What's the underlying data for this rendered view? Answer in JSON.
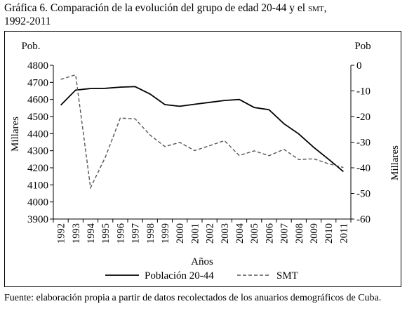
{
  "title_prefix": "Gráfica 6. Comparación de la evolución del grupo de edad 20-44 y el ",
  "title_sc": "SMT",
  "title_suffix": ",",
  "title_line2": "1992-2011",
  "source": "Fuente: elaboración propia a partir de datos recolectados de los anuarios demográficos de Cuba.",
  "chart_data": {
    "type": "line",
    "x": [
      "1992",
      "1993",
      "1994",
      "1995",
      "1996",
      "1997",
      "1998",
      "1999",
      "2000",
      "2001",
      "2002",
      "2003",
      "2004",
      "2005",
      "2006",
      "2007",
      "2008",
      "2009",
      "2010",
      "2011"
    ],
    "xlabel": "Años",
    "y_left": {
      "header": "Pob.",
      "label": "Millares",
      "ylim": [
        3900,
        4800
      ],
      "ticks": [
        3900,
        4000,
        4100,
        4200,
        4300,
        4400,
        4500,
        4600,
        4700,
        4800
      ]
    },
    "y_right": {
      "header": "Pob",
      "label": "Millares",
      "ylim": [
        -60,
        0
      ],
      "ticks": [
        0,
        -10,
        -20,
        -30,
        -40,
        -50,
        -60
      ]
    },
    "series": [
      {
        "name": "Población 20-44",
        "axis": "left",
        "style": "solid",
        "color": "#000000",
        "values": [
          4567,
          4655,
          4664,
          4665,
          4672,
          4675,
          4632,
          4570,
          4560,
          4572,
          4583,
          4594,
          4600,
          4553,
          4540,
          4458,
          4398,
          4320,
          4250,
          4178
        ]
      },
      {
        "name": "SMT",
        "axis": "right",
        "style": "dashed",
        "color": "#555555",
        "values": [
          -5.5,
          -3.7,
          -47.8,
          -35.8,
          -20.6,
          -20.9,
          -27.2,
          -31.7,
          -30.1,
          -33.3,
          -31.4,
          -29.4,
          -35.2,
          -33.4,
          -35.3,
          -32.8,
          -36.8,
          -36.5,
          -38.4,
          -39.9
        ]
      }
    ],
    "legend": "bottom",
    "grid": false
  }
}
